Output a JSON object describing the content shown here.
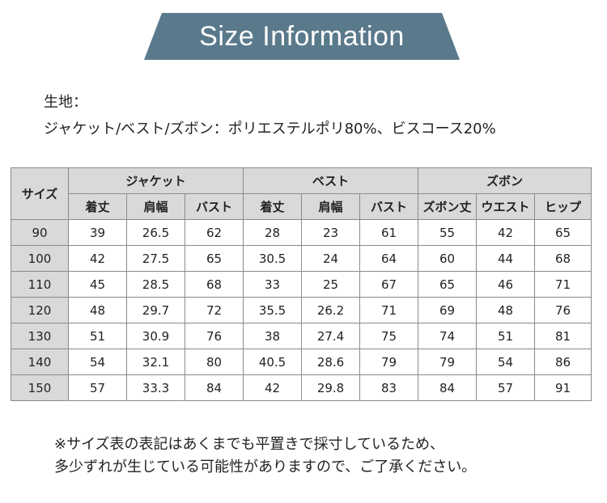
{
  "banner": {
    "title": "Size Information",
    "color": "#5a7a8c"
  },
  "fabric": {
    "label": "生地：",
    "text": "ジャケット/ベスト/ズボン：ポリエステルポリ80%、ビスコース20%"
  },
  "table": {
    "size_header": "サイズ",
    "groups": [
      "ジャケット",
      "ベスト",
      "ズボン"
    ],
    "subheaders": [
      "着丈",
      "肩幅",
      "バスト",
      "着丈",
      "肩幅",
      "バスト",
      "ズボン丈",
      "ウエスト",
      "ヒップ"
    ],
    "rows": [
      [
        "90",
        "39",
        "26.5",
        "62",
        "28",
        "23",
        "61",
        "55",
        "42",
        "65"
      ],
      [
        "100",
        "42",
        "27.5",
        "65",
        "30.5",
        "24",
        "64",
        "60",
        "44",
        "68"
      ],
      [
        "110",
        "45",
        "28.5",
        "68",
        "33",
        "25",
        "67",
        "65",
        "46",
        "71"
      ],
      [
        "120",
        "48",
        "29.7",
        "72",
        "35.5",
        "26.2",
        "71",
        "69",
        "48",
        "76"
      ],
      [
        "130",
        "51",
        "30.9",
        "76",
        "38",
        "27.4",
        "75",
        "74",
        "51",
        "81"
      ],
      [
        "140",
        "54",
        "32.1",
        "80",
        "40.5",
        "28.6",
        "79",
        "79",
        "54",
        "86"
      ],
      [
        "150",
        "57",
        "33.3",
        "84",
        "42",
        "29.8",
        "83",
        "84",
        "57",
        "91"
      ]
    ]
  },
  "note": {
    "line1": "※サイズ表の表記はあくまでも平置きで採寸しているため、",
    "line2": "多少ずれが生じている可能性がありますので、ご了承ください。"
  }
}
